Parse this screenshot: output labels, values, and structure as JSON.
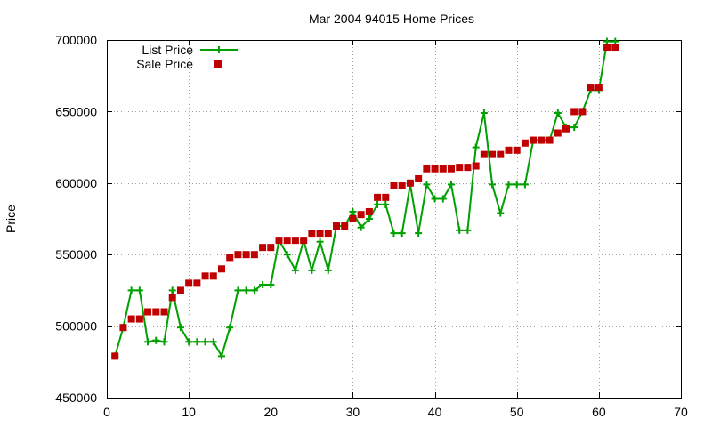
{
  "chart_data": {
    "type": "line",
    "title": "Mar 2004 94015 Home Prices",
    "xlabel": "",
    "ylabel": "Price",
    "xlim": [
      0,
      70
    ],
    "ylim": [
      450000,
      700000
    ],
    "x_ticks": [
      0,
      10,
      20,
      30,
      40,
      50,
      60,
      70
    ],
    "y_ticks": [
      450000,
      500000,
      550000,
      600000,
      650000,
      700000
    ],
    "x_tick_labels": [
      "0",
      "10",
      "20",
      "30",
      "40",
      "50",
      "60",
      "70"
    ],
    "y_tick_labels": [
      "450000",
      "500000",
      "550000",
      "600000",
      "650000",
      "700000"
    ],
    "grid": true,
    "legend_position": "top-left",
    "series": [
      {
        "name": "List Price",
        "style": "linespoints",
        "marker": "plus",
        "color": "#00a000",
        "x": [
          1,
          2,
          3,
          4,
          5,
          6,
          7,
          8,
          9,
          10,
          11,
          12,
          13,
          14,
          15,
          16,
          17,
          18,
          19,
          20,
          21,
          22,
          23,
          24,
          25,
          26,
          27,
          28,
          29,
          30,
          31,
          32,
          33,
          34,
          35,
          36,
          37,
          38,
          39,
          40,
          41,
          42,
          43,
          44,
          45,
          46,
          47,
          48,
          49,
          50,
          51,
          52,
          53,
          54,
          55,
          56,
          57,
          58,
          59,
          60,
          61,
          62
        ],
        "values": [
          479000,
          499000,
          525000,
          525000,
          489000,
          490000,
          489000,
          525000,
          499000,
          489000,
          489000,
          489000,
          489000,
          479000,
          499000,
          525000,
          525000,
          525000,
          529000,
          529000,
          560000,
          550000,
          539000,
          560000,
          539000,
          559000,
          539000,
          570000,
          570000,
          580000,
          569000,
          575000,
          585000,
          585000,
          565000,
          565000,
          599000,
          565000,
          599000,
          589000,
          589000,
          599000,
          567000,
          567000,
          625000,
          649000,
          599000,
          579000,
          599000,
          599000,
          599000,
          630000,
          630000,
          630000,
          649000,
          639000,
          639000,
          650000,
          665000,
          665000,
          699000,
          699000
        ]
      },
      {
        "name": "Sale Price",
        "style": "points",
        "marker": "square",
        "color": "#c00000",
        "x": [
          1,
          2,
          3,
          4,
          5,
          6,
          7,
          8,
          9,
          10,
          11,
          12,
          13,
          14,
          15,
          16,
          17,
          18,
          19,
          20,
          21,
          22,
          23,
          24,
          25,
          26,
          27,
          28,
          29,
          30,
          31,
          32,
          33,
          34,
          35,
          36,
          37,
          38,
          39,
          40,
          41,
          42,
          43,
          44,
          45,
          46,
          47,
          48,
          49,
          50,
          51,
          52,
          53,
          54,
          55,
          56,
          57,
          58,
          59,
          60,
          61,
          62
        ],
        "values": [
          479000,
          499000,
          505000,
          505000,
          510000,
          510000,
          510000,
          520000,
          525000,
          530000,
          530000,
          535000,
          535000,
          540000,
          548000,
          550000,
          550000,
          550000,
          555000,
          555000,
          560000,
          560000,
          560000,
          560000,
          565000,
          565000,
          565000,
          570000,
          570000,
          575000,
          578000,
          580000,
          590000,
          590000,
          598000,
          598000,
          600000,
          603000,
          610000,
          610000,
          610000,
          610000,
          611000,
          611000,
          612000,
          620000,
          620000,
          620000,
          623000,
          623000,
          628000,
          630000,
          630000,
          630000,
          635000,
          638000,
          650000,
          650000,
          667000,
          667000,
          695000,
          695000
        ]
      }
    ]
  }
}
